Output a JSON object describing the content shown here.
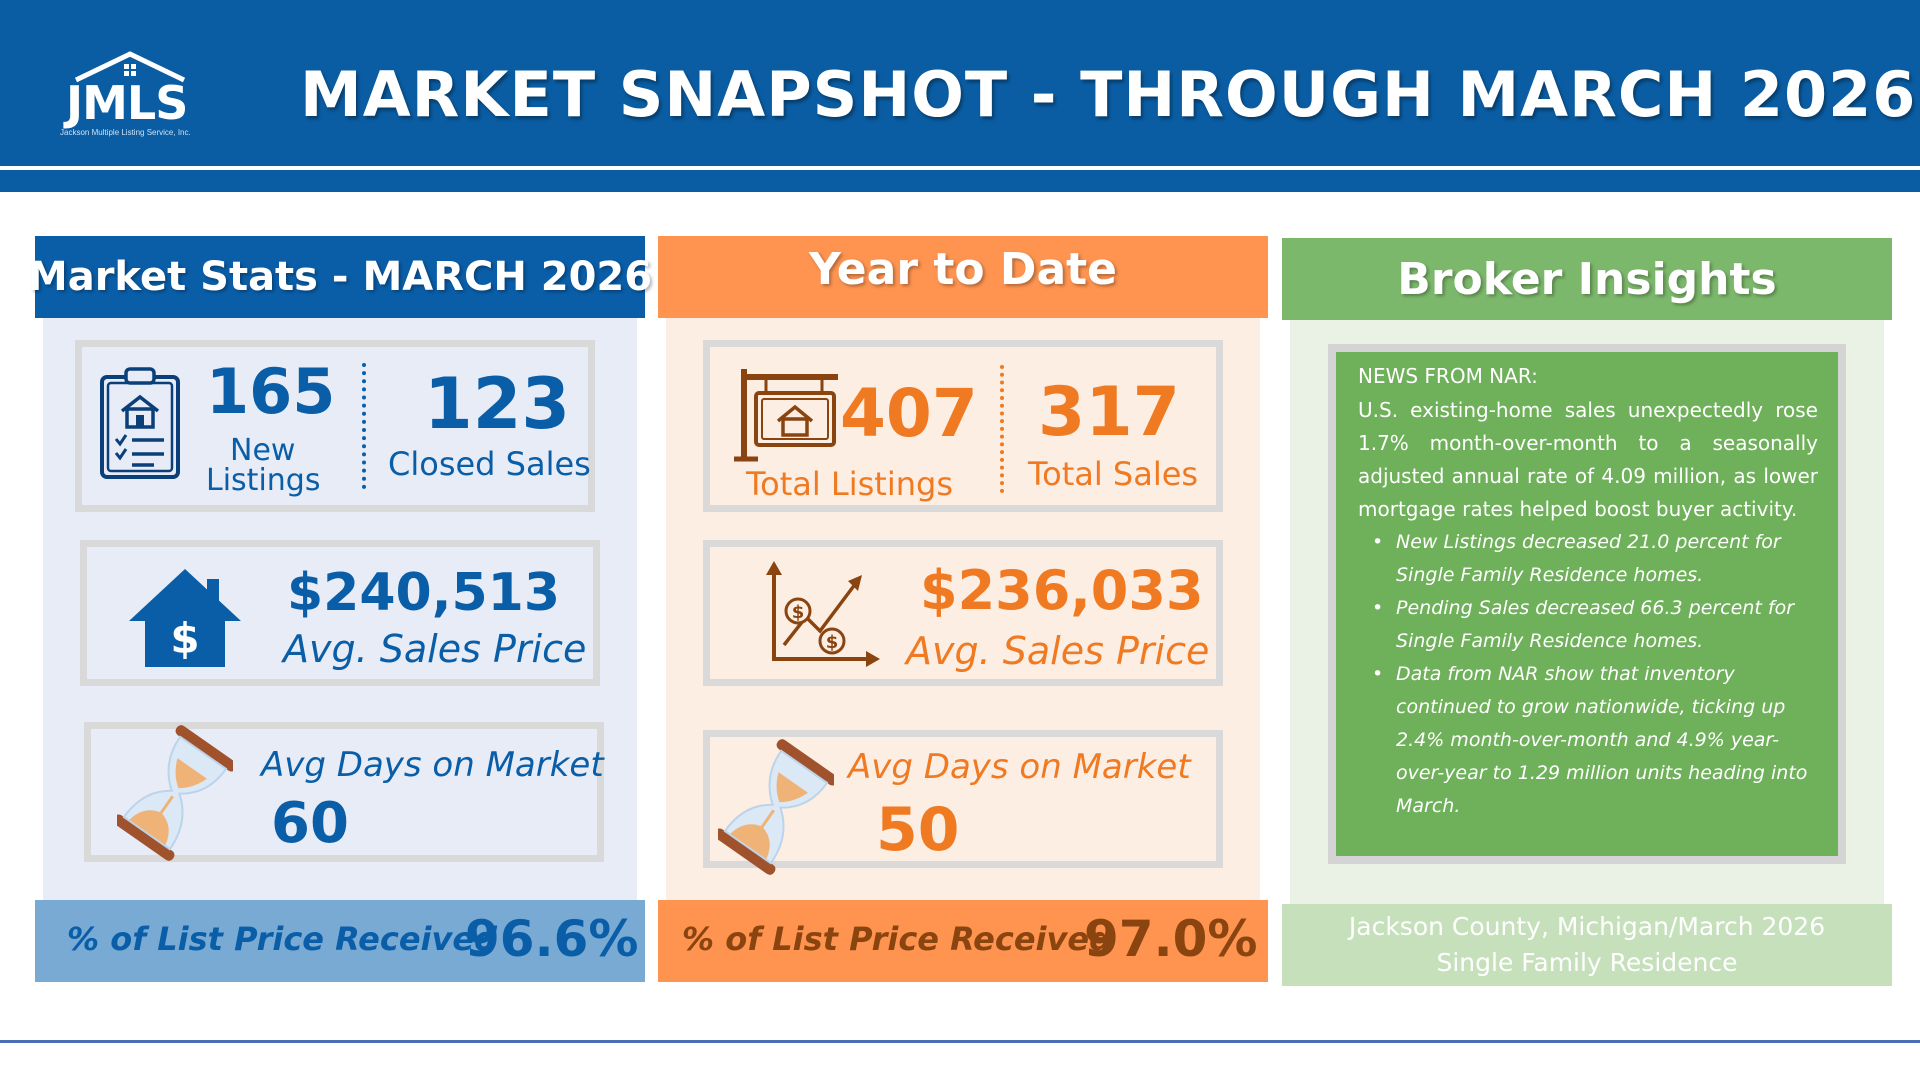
{
  "header": {
    "logo_text": "JMLS",
    "logo_subtext": "Jackson Multiple Listing Service, Inc.",
    "title": "MARKET SNAPSHOT - THROUGH MARCH 2026"
  },
  "colors": {
    "header_blue": "#0a5da3",
    "blue_text": "#0a5ea8",
    "orange_head": "#ff9450",
    "orange_text": "#f07a22",
    "green_head": "#7cb86b",
    "green_box": "#6fb05a"
  },
  "market_stats": {
    "title": "Market Stats - MARCH 2026",
    "new_listings_value": "165",
    "new_listings_label_1": "New",
    "new_listings_label_2": "Listings",
    "closed_sales_value": "123",
    "closed_sales_label": "Closed Sales",
    "avg_price_value": "$240,513",
    "avg_price_label": "Avg. Sales Price",
    "dom_label": "Avg Days on Market",
    "dom_value": "60",
    "list_price_label": "% of List Price Received",
    "list_price_value": "96.6%"
  },
  "year_to_date": {
    "title": "Year to Date",
    "total_listings_value": "407",
    "total_listings_label": "Total Listings",
    "total_sales_value": "317",
    "total_sales_label": "Total Sales",
    "avg_price_value": "$236,033",
    "avg_price_label": "Avg. Sales Price",
    "dom_label": "Avg Days on Market",
    "dom_value": "50",
    "list_price_label": "% of List Price Received",
    "list_price_value": "97.0%"
  },
  "broker_insights": {
    "title": "Broker Insights",
    "news_heading": "NEWS FROM NAR:",
    "news_body": "U.S. existing-home sales unexpectedly rose 1.7% month-over-month to a seasonally adjusted annual rate of 4.09 million, as lower mortgage rates helped boost buyer activity.",
    "bullets": [
      "New Listings decreased 21.0 percent for Single Family Residence homes.",
      "Pending Sales decreased 66.3 percent for Single Family Residence homes.",
      "Data from NAR show that inventory continued to grow nationwide, ticking up 2.4% month-over-month and 4.9% year-over-year to 1.29 million units heading into March."
    ],
    "footer_line_1": "Jackson County, Michigan/March 2026",
    "footer_line_2": "Single Family Residence"
  },
  "icons": [
    "clipboard-house-icon",
    "house-dollar-icon",
    "hourglass-icon",
    "realty-sign-icon",
    "dollar-growth-chart-icon"
  ]
}
